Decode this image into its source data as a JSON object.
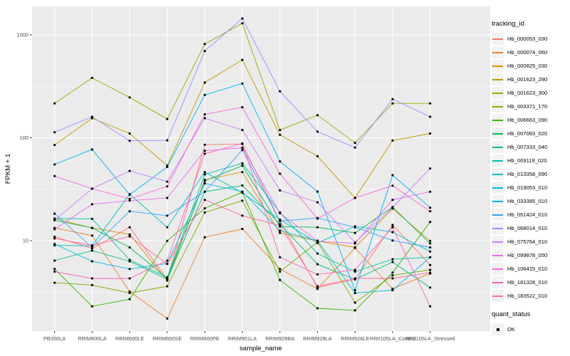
{
  "axes": {
    "y_label": "FPKM + 1",
    "x_label": "sample_name",
    "y_ticks": [
      10,
      100,
      1000
    ],
    "y_minor": [
      3.162,
      31.62,
      316.2
    ],
    "y_range_note": "log10 scale, panel spans ~1.3 to ~1900"
  },
  "legend": {
    "tracking_title": "tracking_id",
    "quant_title": "quant_status",
    "quant_items": [
      {
        "label": "OK"
      }
    ]
  },
  "chart_data": {
    "type": "line",
    "title": "",
    "xlabel": "sample_name",
    "ylabel": "FPKM + 1",
    "y_scale": "log10",
    "ylim": [
      1.3,
      1900
    ],
    "grid": "white-on-grey",
    "legend_position": "right",
    "categories": [
      "PB350LA",
      "RRIM600LA",
      "RRIM600LE",
      "RRIM600SE",
      "RRIM600PE",
      "RRIM901LA",
      "RRIM928BA",
      "RRIM928LA",
      "RRIM928LE",
      "RRII105LA_Control",
      "RRII105LA_Stressed"
    ],
    "point_marker": "black dot (quant_status OK)",
    "series": [
      {
        "name": "Hb_000053_030",
        "color": "#F8766D",
        "values": [
          10.9,
          8.4,
          13.5,
          4.2,
          85.5,
          87,
          15.5,
          3.5,
          4.2,
          14.2,
          5.8
        ]
      },
      {
        "name": "Hb_000074_060",
        "color": "#EA8331",
        "values": [
          13.3,
          11.2,
          3.2,
          1.75,
          10.8,
          13,
          5.3,
          3.4,
          8.5,
          3.4,
          4.8
        ]
      },
      {
        "name": "Hb_000825_030",
        "color": "#D89000",
        "values": [
          16.4,
          13.3,
          11.5,
          4.1,
          39,
          46.4,
          11.9,
          9.9,
          8.6,
          20.5,
          9.95
        ]
      },
      {
        "name": "Hb_001623_290",
        "color": "#C09B00",
        "values": [
          85,
          155,
          110,
          53.6,
          344,
          572,
          107,
          66.2,
          26,
          94,
          110
        ]
      },
      {
        "name": "Hb_001623_300",
        "color": "#A3A500",
        "values": [
          216,
          382,
          247,
          152,
          816,
          1297,
          119,
          166,
          89.2,
          216,
          216
        ]
      },
      {
        "name": "Hb_003371_170",
        "color": "#7CAE00",
        "values": [
          3.9,
          3.7,
          3.1,
          3.6,
          18.8,
          24.5,
          5,
          9.7,
          2.5,
          4.6,
          5.2
        ]
      },
      {
        "name": "Hb_006663_090",
        "color": "#39B600",
        "values": [
          5.3,
          2.3,
          2.7,
          9.95,
          20.6,
          29.6,
          4.15,
          2.2,
          2.1,
          4.9,
          15.2
        ]
      },
      {
        "name": "Hb_007083_020",
        "color": "#00BB4E",
        "values": [
          15.8,
          13.3,
          8.6,
          4.3,
          38.1,
          53.6,
          13.7,
          13.5,
          11.9,
          21.2,
          9.4
        ]
      },
      {
        "name": "Hb_007333_040",
        "color": "#00BF7D",
        "values": [
          6.4,
          8,
          6.3,
          4.2,
          29.9,
          34.4,
          14.5,
          5.9,
          4.2,
          6.2,
          3.5
        ]
      },
      {
        "name": "Hb_009119_020",
        "color": "#00C1A7",
        "values": [
          16.4,
          16.3,
          6.5,
          4.4,
          44,
          56.5,
          18.8,
          7.5,
          5,
          6.6,
          6.9
        ]
      },
      {
        "name": "Hb_013358_090",
        "color": "#00BFC4",
        "values": [
          9,
          8.9,
          28.3,
          13.5,
          46.4,
          29.2,
          16,
          9.5,
          13.8,
          12.1,
          7.85
        ]
      },
      {
        "name": "Hb_019053_010",
        "color": "#00BAE0",
        "values": [
          9.3,
          6.3,
          5.3,
          6,
          36,
          30,
          12.5,
          10,
          3.1,
          3.3,
          6.9
        ]
      },
      {
        "name": "Hb_033385_010",
        "color": "#00B0F6",
        "values": [
          55,
          77,
          28,
          52,
          261,
          337,
          58.9,
          30,
          3.3,
          43.3,
          20.9
        ]
      },
      {
        "name": "Hb_051424_010",
        "color": "#35A2FF",
        "values": [
          18.3,
          8.6,
          19.3,
          17.5,
          29.9,
          76,
          15.5,
          16.6,
          13.5,
          10.05,
          8.6
        ]
      },
      {
        "name": "Hb_068014_010",
        "color": "#9590FF",
        "values": [
          113,
          160,
          93.5,
          94.4,
          697,
          1442,
          283,
          114.6,
          80.2,
          237,
          160
        ]
      },
      {
        "name": "Hb_075764_010",
        "color": "#C77CFF",
        "values": [
          15.8,
          32,
          47.6,
          37.5,
          155,
          119,
          30.8,
          23.6,
          9.6,
          21,
          50.3
        ]
      },
      {
        "name": "Hb_099878_050",
        "color": "#E76BF3",
        "values": [
          12.9,
          22.6,
          24.5,
          26,
          74.8,
          80,
          18.5,
          9.9,
          9.4,
          24.9,
          29.9
        ]
      },
      {
        "name": "Hb_106415_010",
        "color": "#FA62DB",
        "values": [
          42.4,
          32,
          25.5,
          33.7,
          169,
          198,
          44.7,
          16.4,
          26,
          34.2,
          19.3
        ]
      },
      {
        "name": "Hb_181328_010",
        "color": "#FF62BC",
        "values": [
          5,
          4.3,
          4.3,
          6.4,
          70,
          88,
          6.9,
          4.7,
          5.2,
          13.5,
          2.3
        ]
      },
      {
        "name": "Hb_183522_010",
        "color": "#FF6A98",
        "values": [
          10.5,
          9,
          11,
          5.95,
          24.9,
          17.5,
          14,
          3.6,
          4.3,
          4.3,
          4.9
        ]
      }
    ]
  },
  "theme": {
    "panel_bg": "#EBEBEB",
    "grid_color": "#FFFFFF",
    "point_color": "#000000",
    "tick_text": "#4d4d4d",
    "legend_key_bg": "#F2F2F2"
  }
}
